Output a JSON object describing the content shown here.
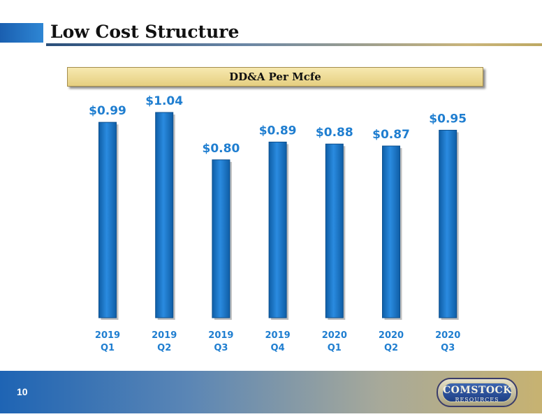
{
  "header": {
    "title": "Low Cost Structure"
  },
  "footer": {
    "page_number": "10",
    "logo_main": "COMSTOCK",
    "logo_sub": "RESOURCES"
  },
  "chart_data": {
    "type": "bar",
    "title": "DD&A Per Mcfe",
    "xlabel": "",
    "ylabel": "",
    "categories": [
      [
        "2019",
        "Q1"
      ],
      [
        "2019",
        "Q2"
      ],
      [
        "2019",
        "Q3"
      ],
      [
        "2019",
        "Q4"
      ],
      [
        "2020",
        "Q1"
      ],
      [
        "2020",
        "Q2"
      ],
      [
        "2020",
        "Q3"
      ]
    ],
    "values": [
      0.99,
      1.04,
      0.8,
      0.89,
      0.88,
      0.87,
      0.95
    ],
    "value_labels": [
      "$0.99",
      "$1.04",
      "$0.80",
      "$0.89",
      "$0.88",
      "$0.87",
      "$0.95"
    ],
    "ylim": [
      0,
      1.04
    ],
    "grid": false,
    "legend": "none",
    "colors": {
      "bar": "#1e7fd0",
      "bar_dark": "#0f5ea6",
      "label": "#1f7ed0"
    }
  }
}
